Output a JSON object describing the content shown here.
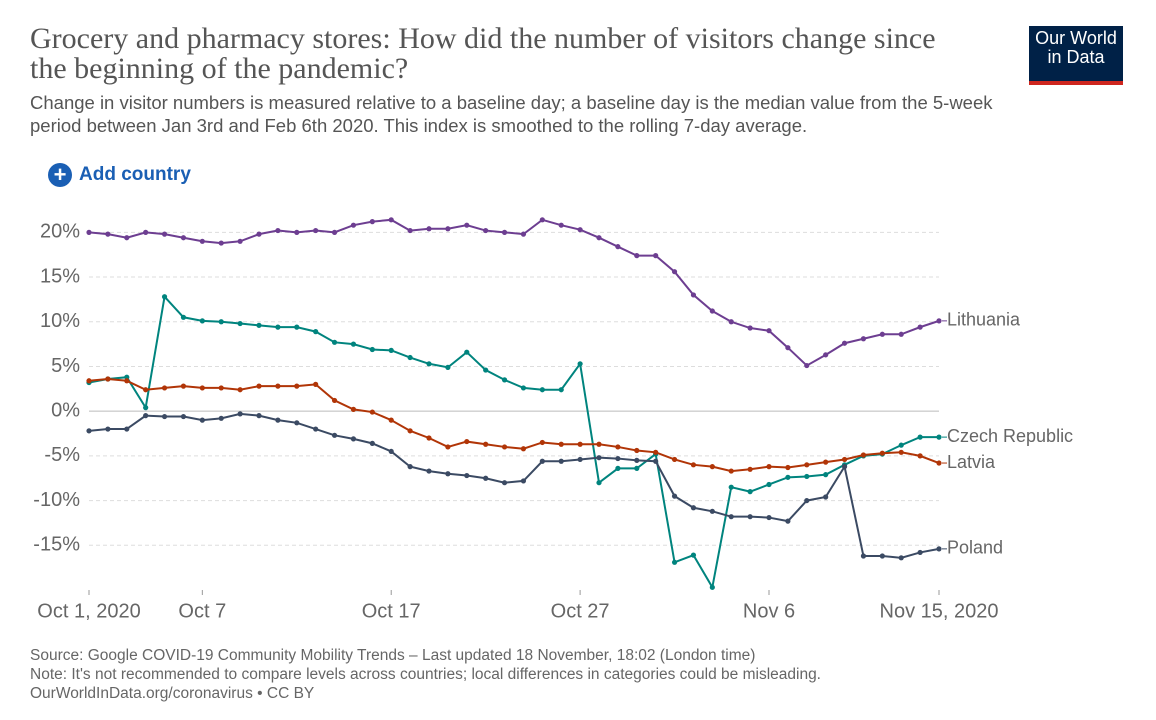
{
  "chart_data": {
    "type": "line",
    "title": "Grocery and pharmacy stores: How did the number of visitors change since the beginning of the pandemic?",
    "subtitle": "Change in visitor numbers is measured relative to a baseline day; a baseline day is the median value from the 5-week period between Jan 3rd and Feb 6th 2020. This index is smoothed to the rolling 7-day average.",
    "add_button": "Add country",
    "logo": [
      "Our World",
      "in Data"
    ],
    "source": "Source: Google COVID-19 Community Mobility Trends – Last updated 18 November, 18:02 (London time)",
    "note": "Note: It's not recommended to compare levels across countries; local differences in categories could be misleading.",
    "license": "OurWorldInData.org/coronavirus • CC BY",
    "x": [
      "2020-10-01",
      "2020-10-02",
      "2020-10-03",
      "2020-10-04",
      "2020-10-05",
      "2020-10-06",
      "2020-10-07",
      "2020-10-08",
      "2020-10-09",
      "2020-10-10",
      "2020-10-11",
      "2020-10-12",
      "2020-10-13",
      "2020-10-14",
      "2020-10-15",
      "2020-10-16",
      "2020-10-17",
      "2020-10-18",
      "2020-10-19",
      "2020-10-20",
      "2020-10-21",
      "2020-10-22",
      "2020-10-23",
      "2020-10-24",
      "2020-10-25",
      "2020-10-26",
      "2020-10-27",
      "2020-10-28",
      "2020-10-29",
      "2020-10-30",
      "2020-10-31",
      "2020-11-01",
      "2020-11-02",
      "2020-11-03",
      "2020-11-04",
      "2020-11-05",
      "2020-11-06",
      "2020-11-07",
      "2020-11-08",
      "2020-11-09",
      "2020-11-10",
      "2020-11-11",
      "2020-11-12",
      "2020-11-13",
      "2020-11-14",
      "2020-11-15"
    ],
    "xlim": [
      "2020-10-01",
      "2020-11-15"
    ],
    "xticks": [
      {
        "value": "2020-10-01",
        "label": "Oct 1, 2020"
      },
      {
        "value": "2020-10-07",
        "label": "Oct 7"
      },
      {
        "value": "2020-10-17",
        "label": "Oct 17"
      },
      {
        "value": "2020-10-27",
        "label": "Oct 27"
      },
      {
        "value": "2020-11-06",
        "label": "Nov 6"
      },
      {
        "value": "2020-11-15",
        "label": "Nov 15, 2020"
      }
    ],
    "ylim": [
      -20,
      22.5
    ],
    "yticks": [
      {
        "value": -15,
        "label": "-15%"
      },
      {
        "value": -10,
        "label": "-10%"
      },
      {
        "value": -5,
        "label": "-5%"
      },
      {
        "value": 0,
        "label": "0%"
      },
      {
        "value": 5,
        "label": "5%"
      },
      {
        "value": 10,
        "label": "10%"
      },
      {
        "value": 15,
        "label": "15%"
      },
      {
        "value": 20,
        "label": "20%"
      }
    ],
    "grid": true,
    "series": [
      {
        "name": "Lithuania",
        "color": "#6d3e91",
        "values": [
          20.0,
          19.8,
          19.4,
          20.0,
          19.8,
          19.4,
          19.0,
          18.8,
          19.0,
          19.8,
          20.2,
          20.0,
          20.2,
          20.0,
          20.8,
          21.2,
          21.4,
          20.2,
          20.4,
          20.4,
          20.8,
          20.2,
          20.0,
          19.8,
          21.4,
          20.8,
          20.3,
          19.4,
          18.4,
          17.4,
          17.4,
          15.6,
          13.0,
          11.2,
          10.0,
          9.3,
          9.0,
          7.1,
          5.1,
          6.3,
          7.6,
          8.1,
          8.6,
          8.6,
          9.4,
          10.1
        ]
      },
      {
        "name": "Czech Republic",
        "color": "#00847e",
        "values": [
          3.2,
          3.6,
          3.8,
          0.4,
          12.8,
          10.5,
          10.1,
          10.0,
          9.8,
          9.6,
          9.4,
          9.4,
          8.9,
          7.7,
          7.5,
          6.9,
          6.8,
          6.0,
          5.3,
          4.9,
          6.6,
          4.6,
          3.5,
          2.6,
          2.4,
          2.4,
          5.3,
          -8.0,
          -6.4,
          -6.4,
          -4.8,
          -16.9,
          -16.1,
          -19.7,
          -8.5,
          -9.0,
          -8.2,
          -7.4,
          -7.3,
          -7.1,
          -6.0,
          -5.0,
          -4.8,
          -3.8,
          -2.9,
          -2.9
        ]
      },
      {
        "name": "Latvia",
        "color": "#b13507",
        "values": [
          3.4,
          3.6,
          3.4,
          2.4,
          2.6,
          2.8,
          2.6,
          2.6,
          2.4,
          2.8,
          2.8,
          2.8,
          3.0,
          1.2,
          0.2,
          -0.1,
          -1.0,
          -2.2,
          -3.0,
          -4.0,
          -3.4,
          -3.7,
          -4.0,
          -4.2,
          -3.5,
          -3.7,
          -3.7,
          -3.7,
          -4.0,
          -4.4,
          -4.6,
          -5.4,
          -6.0,
          -6.2,
          -6.7,
          -6.5,
          -6.2,
          -6.3,
          -6.0,
          -5.7,
          -5.4,
          -4.9,
          -4.7,
          -4.6,
          -5.0,
          -5.8
        ]
      },
      {
        "name": "Poland",
        "color": "#3b4a63",
        "values": [
          -2.2,
          -2.0,
          -2.0,
          -0.5,
          -0.6,
          -0.6,
          -1.0,
          -0.8,
          -0.3,
          -0.5,
          -1.0,
          -1.3,
          -2.0,
          -2.7,
          -3.1,
          -3.6,
          -4.5,
          -6.2,
          -6.7,
          -7.0,
          -7.2,
          -7.5,
          -8.0,
          -7.8,
          -5.6,
          -5.6,
          -5.4,
          -5.2,
          -5.3,
          -5.5,
          -5.6,
          -9.5,
          -10.8,
          -11.2,
          -11.8,
          -11.8,
          -11.9,
          -12.3,
          -10.0,
          -9.6,
          -6.2,
          -16.2,
          -16.2,
          -16.4,
          -15.8,
          -15.4
        ]
      }
    ]
  }
}
